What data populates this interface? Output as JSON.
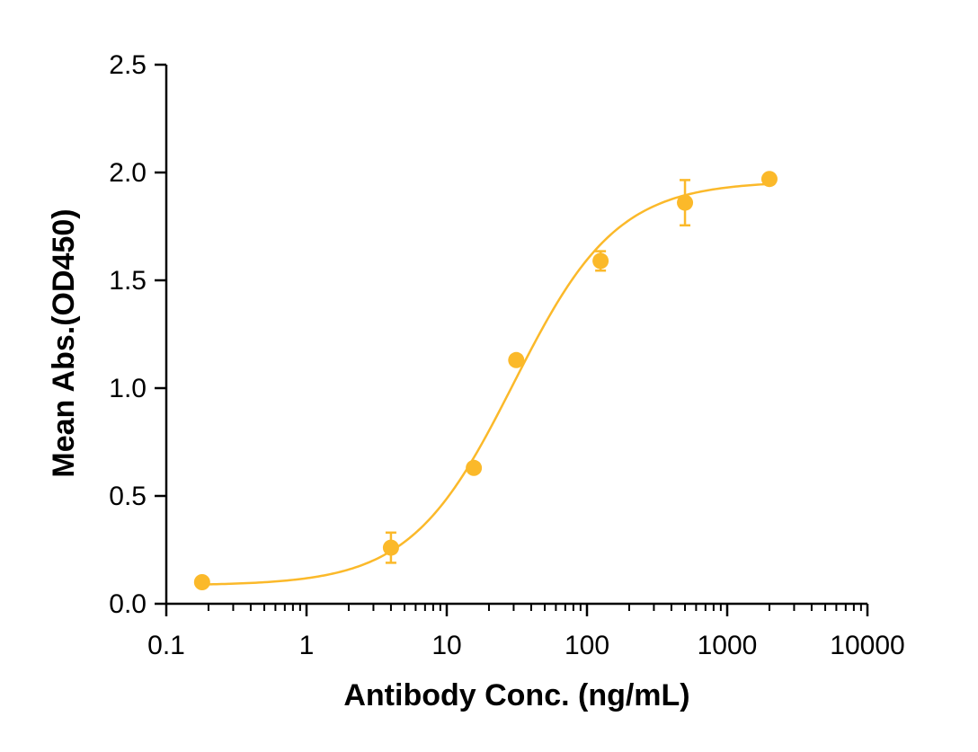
{
  "chart_data": {
    "type": "scatter",
    "xlabel": "Antibody Conc. (ng/mL)",
    "ylabel": "Mean Abs.(OD450)",
    "xscale": "log",
    "xlim": [
      0.1,
      10000
    ],
    "ylim": [
      0,
      2.5
    ],
    "xticks": [
      0.1,
      1,
      10,
      100,
      1000,
      10000
    ],
    "xtick_labels": [
      "0.1",
      "1",
      "10",
      "100",
      "1000",
      "10000"
    ],
    "yticks": [
      0,
      0.5,
      1,
      1.5,
      2,
      2.5
    ],
    "ytick_labels": [
      "0.0",
      "0.5",
      "1.0",
      "1.5",
      "2.0",
      "2.5"
    ],
    "grid": false,
    "color": "#FBB92A",
    "series": [
      {
        "points": [
          {
            "x": 0.18,
            "y": 0.1,
            "err": 0
          },
          {
            "x": 4,
            "y": 0.26,
            "err": 0.07
          },
          {
            "x": 15.6,
            "y": 0.63,
            "err": 0
          },
          {
            "x": 31.3,
            "y": 1.13,
            "err": 0
          },
          {
            "x": 125,
            "y": 1.59,
            "err": 0.045
          },
          {
            "x": 500,
            "y": 1.86,
            "err": 0.105
          },
          {
            "x": 2000,
            "y": 1.97,
            "err": 0
          }
        ],
        "fit": {
          "model": "4PL",
          "bottom": 0.085,
          "top": 1.96,
          "ec50": 30,
          "hill": 1.18
        }
      }
    ]
  }
}
